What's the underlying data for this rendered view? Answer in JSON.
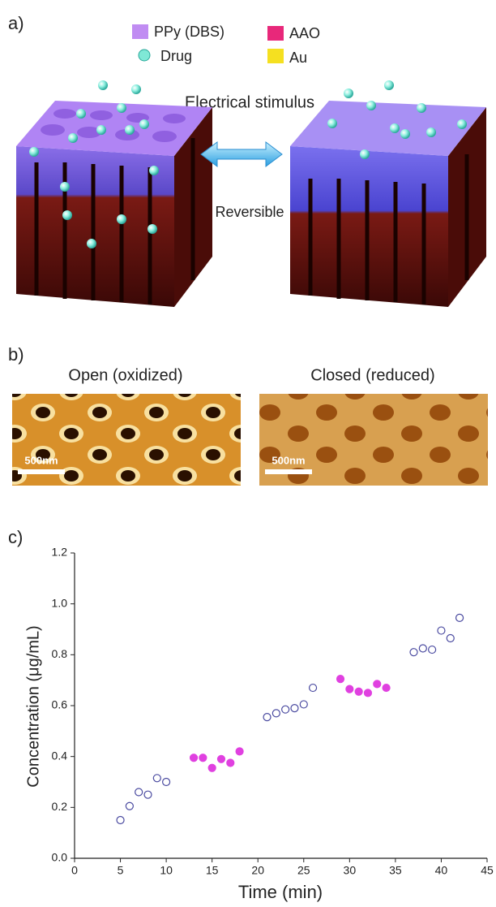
{
  "panel_a": {
    "label": "a)",
    "legend": [
      {
        "label": "PPy (DBS)",
        "color": "#c08cf2"
      },
      {
        "label": "AAO",
        "color": "#e8287a"
      },
      {
        "label": "Drug",
        "color": "#7fe8d6"
      },
      {
        "label": "Au",
        "color": "#f5e020"
      }
    ],
    "stimulus": "Electrical stimulus",
    "reversible": "Reversible"
  },
  "panel_b": {
    "label": "b)",
    "images": [
      {
        "title": "Open (oxidized)",
        "scale_bar": "500nm"
      },
      {
        "title": "Closed (reduced)",
        "scale_bar": "500nm"
      }
    ]
  },
  "chart_data": {
    "type": "scatter",
    "label": "c)",
    "x_label": "Time (min)",
    "y_label": "Concentration (μg/mL)",
    "xlim": [
      0,
      45
    ],
    "xticks": [
      0,
      5,
      10,
      15,
      20,
      25,
      30,
      35,
      40,
      45
    ],
    "ylim": [
      0,
      1.2
    ],
    "yticks": [
      {
        "value": 0,
        "label": "0.0"
      },
      0.2,
      0.4,
      0.6,
      0.8,
      {
        "value": 1,
        "label": "1.0"
      },
      1.2
    ],
    "series": [
      {
        "color": "#4a4aa0",
        "marker": "open",
        "x": [
          5,
          6,
          7,
          8,
          9,
          10,
          21,
          22,
          23,
          24,
          25,
          26,
          37,
          38,
          39,
          40,
          41,
          42
        ],
        "values": [
          0.15,
          0.205,
          0.26,
          0.25,
          0.315,
          0.3,
          0.555,
          0.57,
          0.585,
          0.59,
          0.605,
          0.67,
          0.81,
          0.825,
          0.82,
          0.895,
          0.865,
          0.945
        ]
      },
      {
        "color": "#e040e0",
        "marker": "filled",
        "x": [
          13,
          14,
          15,
          16,
          17,
          18,
          29,
          30,
          31,
          32,
          33,
          34
        ],
        "values": [
          0.395,
          0.395,
          0.355,
          0.39,
          0.375,
          0.42,
          0.705,
          0.665,
          0.655,
          0.65,
          0.685,
          0.67
        ]
      }
    ]
  }
}
